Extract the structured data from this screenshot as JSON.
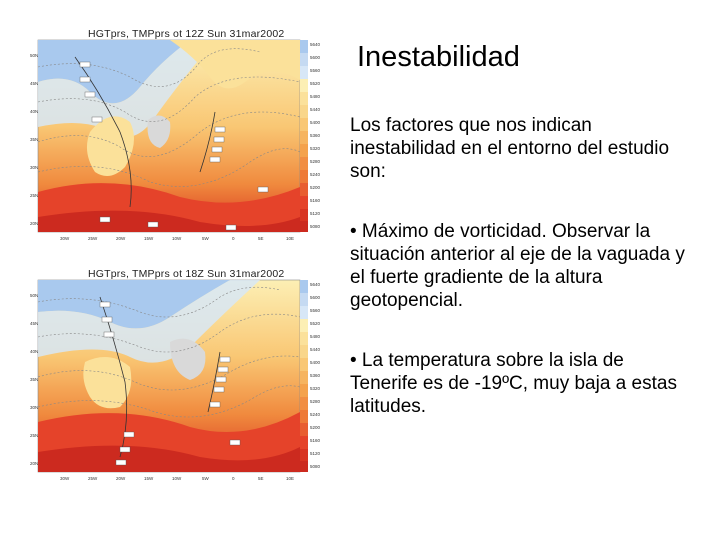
{
  "slide": {
    "title": "Inestabilidad",
    "paragraphs": [
      "Los factores que nos indican inestabilidad en el entorno del estudio son:",
      "• Máximo de vorticidad. Observar la situación anterior al eje de la vaguada y el fuerte gradiente de la altura geotopencial.",
      "• La temperatura sobre la isla de Tenerife es de -19ºC, muy baja a estas latitudes."
    ]
  },
  "maps": [
    {
      "title": "HGTprs, TMPprs ot 12Z Sun 31mar2002",
      "legend": [
        "5640",
        "5600",
        "5560",
        "5520",
        "5480",
        "5440",
        "5400",
        "5360",
        "5320",
        "5280",
        "5240",
        "5200",
        "5160",
        "5120",
        "5080"
      ],
      "lon_ticks": [
        "30W",
        "25W",
        "20W",
        "15W",
        "10W",
        "5W",
        "0",
        "5E",
        "10E"
      ],
      "lat_ticks": [
        "50N",
        "45N",
        "40N",
        "35N",
        "30N",
        "25N",
        "20N"
      ]
    },
    {
      "title": "HGTprs, TMPprs ot 18Z Sun 31mar2002",
      "legend": [
        "5640",
        "5600",
        "5560",
        "5520",
        "5480",
        "5440",
        "5400",
        "5360",
        "5320",
        "5280",
        "5240",
        "5200",
        "5160",
        "5120",
        "5080"
      ],
      "lon_ticks": [
        "30W",
        "25W",
        "20W",
        "15W",
        "10W",
        "5W",
        "0",
        "5E",
        "10E"
      ],
      "lat_ticks": [
        "50N",
        "45N",
        "40N",
        "35N",
        "30N",
        "25N",
        "20N"
      ]
    }
  ],
  "colors": {
    "blue": "#a9c9ee",
    "light_blue": "#d7e7f7",
    "pale_yellow": "#fcefb4",
    "yellow": "#fbe19a",
    "orange_light": "#f9c774",
    "orange": "#f4a24c",
    "orange_dark": "#ee7a37",
    "red": "#e5432a",
    "red_dark": "#cc2a1f",
    "gray_center": "#d9d9d9"
  }
}
